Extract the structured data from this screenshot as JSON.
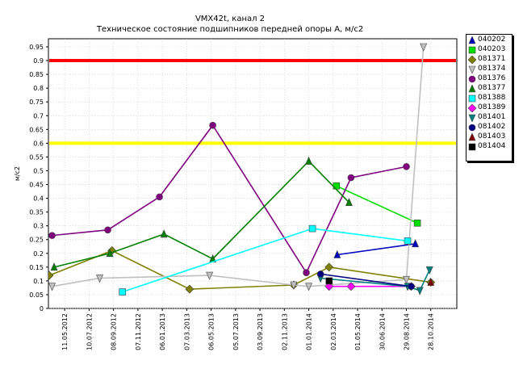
{
  "title": "VMX42t, канал 2",
  "subtitle": "Техническое состояние подшипников передней опоры А, м/с2",
  "chart_data": {
    "type": "line",
    "ylabel": "м/с2",
    "xlabel": "",
    "ylim": [
      0,
      0.95
    ],
    "yticks": [
      0,
      0.05,
      0.1,
      0.15,
      0.2,
      0.25,
      0.3,
      0.35,
      0.4,
      0.45,
      0.5,
      0.55,
      0.6,
      0.65,
      0.7,
      0.75,
      0.8,
      0.85,
      0.9,
      0.95
    ],
    "xlim": [
      "2012-04-01",
      "2014-12-31"
    ],
    "xticks": [
      "11.05.2012",
      "10.07.2012",
      "08.09.2012",
      "07.11.2012",
      "06.01.2013",
      "07.03.2013",
      "06.05.2013",
      "05.07.2013",
      "03.09.2013",
      "02.11.2013",
      "01.01.2014",
      "02.03.2014",
      "01.05.2014",
      "30.06.2014",
      "29.08.2014",
      "28.10.2014"
    ],
    "xtick_dates": [
      "2012-05-11",
      "2012-07-10",
      "2012-09-08",
      "2012-11-07",
      "2013-01-06",
      "2013-03-07",
      "2013-05-06",
      "2013-07-05",
      "2013-09-03",
      "2013-11-02",
      "2014-01-01",
      "2014-03-02",
      "2014-05-01",
      "2014-06-30",
      "2014-08-29",
      "2014-10-28"
    ],
    "thresholds": [
      {
        "value": 0.9,
        "color": "#ff0000"
      },
      {
        "value": 0.6,
        "color": "#ffff00"
      }
    ],
    "grid": true,
    "legend_position": "right",
    "series": [
      {
        "name": "040202",
        "color": "#0000c0",
        "marker": "triangle-up",
        "points": [
          [
            "2014-03-12",
            0.195
          ],
          [
            "2014-09-20",
            0.235
          ]
        ]
      },
      {
        "name": "040203",
        "color": "#00dd00",
        "marker": "square",
        "points": [
          [
            "2014-03-10",
            0.445
          ],
          [
            "2014-09-25",
            0.31
          ]
        ]
      },
      {
        "name": "081371",
        "color": "#808000",
        "marker": "diamond",
        "points": [
          [
            "2012-04-03",
            0.12
          ],
          [
            "2012-09-04",
            0.21
          ],
          [
            "2013-03-14",
            0.07
          ],
          [
            "2013-11-25",
            0.085
          ],
          [
            "2014-02-20",
            0.15
          ],
          [
            "2014-10-28",
            0.095
          ]
        ]
      },
      {
        "name": "081374",
        "color": "#c0c0c0",
        "marker": "triangle-down",
        "points": [
          [
            "2012-04-10",
            0.08
          ],
          [
            "2012-08-05",
            0.11
          ],
          [
            "2013-05-02",
            0.12
          ],
          [
            "2013-11-25",
            0.085
          ],
          [
            "2014-01-01",
            0.08
          ],
          [
            "2014-08-29",
            0.105
          ],
          [
            "2014-10-10",
            0.95
          ]
        ]
      },
      {
        "name": "081376",
        "color": "#800080",
        "marker": "circle",
        "points": [
          [
            "2012-04-10",
            0.265
          ],
          [
            "2012-08-25",
            0.285
          ],
          [
            "2012-12-30",
            0.405
          ],
          [
            "2013-05-10",
            0.665
          ],
          [
            "2013-12-26",
            0.13
          ],
          [
            "2014-04-15",
            0.475
          ],
          [
            "2014-08-29",
            0.515
          ]
        ]
      },
      {
        "name": "081377",
        "color": "#008000",
        "marker": "triangle-up",
        "points": [
          [
            "2012-04-15",
            0.15
          ],
          [
            "2012-08-30",
            0.2
          ],
          [
            "2013-01-10",
            0.27
          ],
          [
            "2013-05-10",
            0.18
          ],
          [
            "2014-01-01",
            0.535
          ],
          [
            "2014-04-10",
            0.385
          ]
        ]
      },
      {
        "name": "081388",
        "color": "#00ffff",
        "marker": "square",
        "points": [
          [
            "2012-09-30",
            0.06
          ],
          [
            "2014-01-10",
            0.29
          ],
          [
            "2014-09-01",
            0.245
          ]
        ]
      },
      {
        "name": "081389",
        "color": "#ff00ff",
        "marker": "diamond",
        "points": [
          [
            "2014-02-20",
            0.08
          ],
          [
            "2014-04-15",
            0.08
          ],
          [
            "2014-09-10",
            0.08
          ]
        ]
      },
      {
        "name": "081401",
        "color": "#008080",
        "marker": "triangle-down",
        "points": [
          [
            "2014-01-30",
            0.11
          ],
          [
            "2014-09-01",
            0.08
          ],
          [
            "2014-10-01",
            0.065
          ],
          [
            "2014-10-25",
            0.14
          ]
        ]
      },
      {
        "name": "081402",
        "color": "#000080",
        "marker": "circle",
        "points": [
          [
            "2014-01-30",
            0.125
          ],
          [
            "2014-09-10",
            0.08
          ]
        ]
      },
      {
        "name": "081403",
        "color": "#800000",
        "marker": "triangle-up",
        "points": [
          [
            "2014-10-28",
            0.095
          ]
        ]
      },
      {
        "name": "081404",
        "color": "#000000",
        "marker": "square",
        "points": [
          [
            "2014-02-20",
            0.1
          ]
        ]
      }
    ]
  }
}
